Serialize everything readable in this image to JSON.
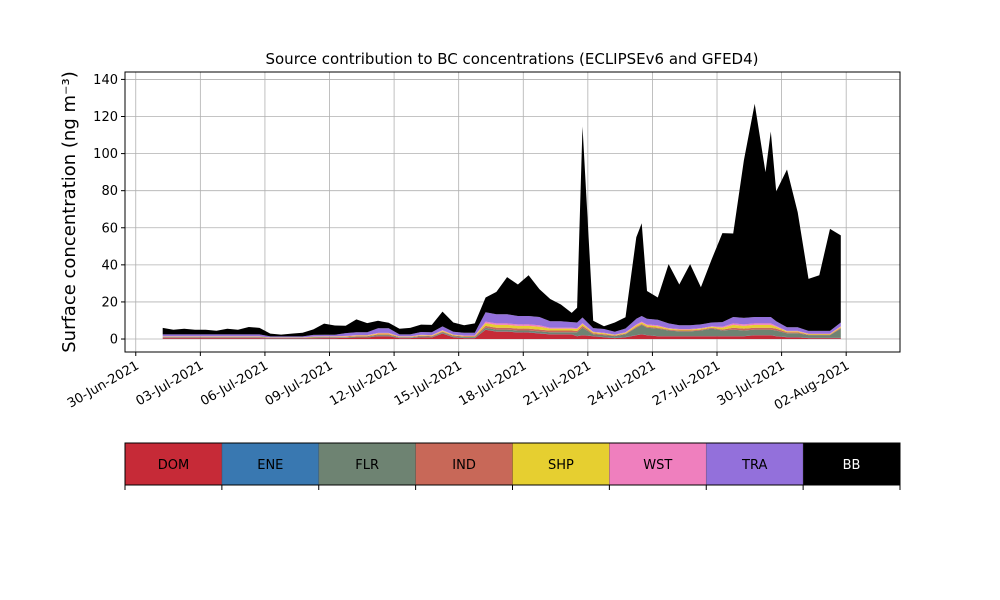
{
  "chart_data": {
    "type": "area",
    "title": "Source contribution to BC concentrations (ECLIPSEv6 and GFED4)",
    "ylabel": "Surface concentration (ng m⁻³)",
    "xlabel": "",
    "ylim": [
      -7,
      144
    ],
    "xlim": [
      "2021-06-29T12:00",
      "2021-08-04T12:00"
    ],
    "y_ticks": [
      0,
      20,
      40,
      60,
      80,
      100,
      120,
      140
    ],
    "x_ticks": [
      "2021-06-30",
      "2021-07-03",
      "2021-07-06",
      "2021-07-09",
      "2021-07-12",
      "2021-07-15",
      "2021-07-18",
      "2021-07-21",
      "2021-07-24",
      "2021-07-27",
      "2021-07-30",
      "2021-08-02"
    ],
    "x_tick_labels": [
      "30-Jun-2021",
      "03-Jul-2021",
      "06-Jul-2021",
      "09-Jul-2021",
      "12-Jul-2021",
      "15-Jul-2021",
      "18-Jul-2021",
      "21-Jul-2021",
      "24-Jul-2021",
      "27-Jul-2021",
      "30-Jul-2021",
      "02-Aug-2021"
    ],
    "grid": true,
    "stacked": true,
    "times": [
      "2021-07-01T06:00",
      "2021-07-01T18:00",
      "2021-07-02T06:00",
      "2021-07-02T18:00",
      "2021-07-03T06:00",
      "2021-07-03T18:00",
      "2021-07-04T06:00",
      "2021-07-04T18:00",
      "2021-07-05T06:00",
      "2021-07-05T18:00",
      "2021-07-06T06:00",
      "2021-07-06T18:00",
      "2021-07-07T06:00",
      "2021-07-07T18:00",
      "2021-07-08T06:00",
      "2021-07-08T18:00",
      "2021-07-09T06:00",
      "2021-07-09T18:00",
      "2021-07-10T06:00",
      "2021-07-10T18:00",
      "2021-07-11T06:00",
      "2021-07-11T18:00",
      "2021-07-12T06:00",
      "2021-07-12T18:00",
      "2021-07-13T06:00",
      "2021-07-13T18:00",
      "2021-07-14T06:00",
      "2021-07-14T18:00",
      "2021-07-15T06:00",
      "2021-07-15T18:00",
      "2021-07-16T06:00",
      "2021-07-16T18:00",
      "2021-07-17T06:00",
      "2021-07-17T18:00",
      "2021-07-18T06:00",
      "2021-07-18T18:00",
      "2021-07-19T06:00",
      "2021-07-19T18:00",
      "2021-07-20T06:00",
      "2021-07-20T12:00",
      "2021-07-20T18:00",
      "2021-07-21T06:00",
      "2021-07-21T18:00",
      "2021-07-22T06:00",
      "2021-07-22T18:00",
      "2021-07-23T06:00",
      "2021-07-23T12:00",
      "2021-07-23T18:00",
      "2021-07-24T06:00",
      "2021-07-24T18:00",
      "2021-07-25T06:00",
      "2021-07-25T18:00",
      "2021-07-26T06:00",
      "2021-07-26T18:00",
      "2021-07-27T06:00",
      "2021-07-27T18:00",
      "2021-07-28T06:00",
      "2021-07-28T18:00",
      "2021-07-29T06:00",
      "2021-07-29T12:00",
      "2021-07-29T18:00",
      "2021-07-30T06:00",
      "2021-07-30T18:00",
      "2021-07-31T06:00",
      "2021-07-31T18:00",
      "2021-08-01T06:00",
      "2021-08-01T18:00"
    ],
    "series": [
      {
        "name": "DOM",
        "color": "#c62a37",
        "values": [
          0.5,
          0.5,
          0.5,
          0.5,
          0.5,
          0.5,
          0.5,
          0.5,
          0.5,
          0.5,
          0.3,
          0.3,
          0.3,
          0.3,
          0.4,
          0.5,
          0.5,
          0.6,
          0.8,
          0.8,
          1.5,
          1.5,
          0.5,
          0.5,
          1.0,
          0.8,
          3.0,
          1.0,
          0.5,
          0.5,
          5.0,
          4.0,
          4.0,
          3.5,
          3.5,
          3.0,
          2.5,
          2.5,
          2.5,
          1.5,
          2.0,
          1.5,
          1.0,
          0.5,
          1.0,
          2.0,
          2.5,
          2.0,
          1.5,
          1.5,
          1.5,
          1.5,
          1.5,
          1.5,
          1.5,
          1.5,
          1.5,
          2.0,
          2.0,
          2.0,
          1.5,
          1.0,
          1.0,
          0.5,
          0.5,
          0.5,
          0.5
        ]
      },
      {
        "name": "ENE",
        "color": "#3978b1",
        "values": [
          0.1,
          0.1,
          0.1,
          0.1,
          0.1,
          0.1,
          0.1,
          0.1,
          0.1,
          0.1,
          0.1,
          0.1,
          0.1,
          0.1,
          0.1,
          0.1,
          0.1,
          0.1,
          0.1,
          0.1,
          0.1,
          0.1,
          0.1,
          0.1,
          0.1,
          0.1,
          0.1,
          0.1,
          0.1,
          0.1,
          0.1,
          0.1,
          0.1,
          0.1,
          0.1,
          0.1,
          0.1,
          0.1,
          0.1,
          0.1,
          0.1,
          0.1,
          0.1,
          0.1,
          0.1,
          0.1,
          0.1,
          0.1,
          0.1,
          0.1,
          0.1,
          0.1,
          0.1,
          0.1,
          0.1,
          0.1,
          0.1,
          0.1,
          0.1,
          0.1,
          0.1,
          0.1,
          0.1,
          0.1,
          0.1,
          0.1,
          0.1
        ]
      },
      {
        "name": "FLR",
        "color": "#6e8372",
        "values": [
          0.3,
          0.3,
          0.3,
          0.3,
          0.3,
          0.3,
          0.3,
          0.3,
          0.3,
          0.3,
          0.2,
          0.2,
          0.2,
          0.2,
          0.3,
          0.3,
          0.3,
          0.3,
          0.4,
          0.4,
          0.5,
          0.5,
          0.3,
          0.3,
          0.4,
          0.4,
          0.5,
          0.5,
          0.5,
          0.5,
          1.0,
          1.0,
          1.0,
          1.0,
          1.0,
          1.0,
          1.0,
          1.0,
          1.0,
          2.0,
          4.0,
          1.0,
          1.0,
          1.0,
          1.5,
          4.0,
          5.0,
          4.0,
          4.0,
          3.0,
          2.5,
          2.5,
          3.0,
          4.0,
          3.0,
          3.5,
          3.0,
          3.0,
          3.0,
          3.0,
          3.0,
          2.0,
          2.0,
          1.5,
          1.5,
          1.5,
          5.0
        ]
      },
      {
        "name": "IND",
        "color": "#c86858",
        "values": [
          0.2,
          0.2,
          0.2,
          0.2,
          0.2,
          0.2,
          0.2,
          0.2,
          0.2,
          0.2,
          0.1,
          0.1,
          0.1,
          0.1,
          0.2,
          0.2,
          0.2,
          0.2,
          0.3,
          0.3,
          0.4,
          0.4,
          0.2,
          0.2,
          0.3,
          0.3,
          0.4,
          0.3,
          0.3,
          0.3,
          1.0,
          1.0,
          1.0,
          1.0,
          1.0,
          1.0,
          1.0,
          1.0,
          1.0,
          0.8,
          1.0,
          0.5,
          0.5,
          0.3,
          0.3,
          0.5,
          0.5,
          0.5,
          0.5,
          0.5,
          0.5,
          0.5,
          0.5,
          0.5,
          0.5,
          1.0,
          1.0,
          1.0,
          1.0,
          1.0,
          1.0,
          0.5,
          0.5,
          0.3,
          0.3,
          0.3,
          0.5
        ]
      },
      {
        "name": "SHP",
        "color": "#e6cf30",
        "values": [
          0.2,
          0.2,
          0.2,
          0.2,
          0.2,
          0.2,
          0.2,
          0.2,
          0.2,
          0.2,
          0.1,
          0.1,
          0.1,
          0.1,
          0.2,
          0.2,
          0.2,
          0.3,
          0.3,
          0.3,
          0.5,
          0.5,
          0.2,
          0.2,
          0.3,
          0.3,
          0.5,
          0.3,
          0.3,
          0.3,
          1.5,
          1.5,
          1.5,
          1.5,
          1.5,
          1.5,
          1.0,
          1.0,
          1.0,
          1.0,
          1.0,
          0.5,
          0.5,
          0.3,
          0.5,
          0.8,
          0.8,
          0.8,
          0.8,
          0.5,
          0.5,
          0.5,
          0.5,
          0.5,
          1.0,
          1.5,
          1.5,
          1.5,
          1.5,
          1.5,
          1.0,
          0.5,
          0.5,
          0.3,
          0.3,
          0.3,
          0.5
        ]
      },
      {
        "name": "WST",
        "color": "#ef7fbe",
        "values": [
          0.2,
          0.2,
          0.2,
          0.2,
          0.2,
          0.2,
          0.2,
          0.2,
          0.2,
          0.2,
          0.1,
          0.1,
          0.1,
          0.1,
          0.2,
          0.2,
          0.2,
          0.2,
          0.2,
          0.2,
          0.3,
          0.3,
          0.2,
          0.2,
          0.2,
          0.2,
          0.3,
          0.2,
          0.2,
          0.2,
          0.8,
          0.8,
          0.8,
          0.8,
          0.8,
          0.8,
          0.5,
          0.5,
          0.5,
          0.5,
          0.5,
          0.3,
          0.3,
          0.2,
          0.3,
          0.5,
          0.5,
          0.5,
          0.5,
          0.3,
          0.3,
          0.3,
          0.3,
          0.3,
          0.5,
          0.8,
          0.8,
          0.8,
          0.8,
          0.8,
          0.5,
          0.3,
          0.3,
          0.2,
          0.2,
          0.2,
          0.3
        ]
      },
      {
        "name": "TRA",
        "color": "#9370db",
        "values": [
          1.0,
          1.0,
          1.0,
          1.0,
          1.0,
          1.0,
          1.0,
          1.0,
          1.0,
          1.0,
          0.5,
          0.5,
          0.5,
          0.5,
          0.8,
          0.8,
          0.8,
          1.5,
          1.5,
          1.5,
          2.5,
          2.5,
          1.0,
          1.0,
          1.5,
          1.5,
          2.0,
          1.5,
          1.5,
          1.5,
          5.0,
          5.0,
          5.0,
          4.5,
          4.5,
          4.5,
          3.5,
          3.5,
          3.0,
          3.0,
          3.0,
          2.0,
          2.0,
          1.5,
          2.0,
          3.0,
          3.0,
          3.0,
          3.0,
          2.5,
          2.0,
          2.0,
          2.0,
          2.0,
          2.5,
          3.5,
          3.5,
          3.5,
          3.5,
          3.5,
          2.5,
          2.0,
          2.0,
          1.5,
          1.5,
          1.5,
          2.0
        ]
      },
      {
        "name": "BB",
        "color": "#000000",
        "values": [
          3.5,
          2.5,
          3.0,
          2.5,
          2.5,
          2.0,
          3.0,
          2.5,
          4.0,
          3.5,
          1.5,
          1.0,
          1.5,
          2.0,
          3.0,
          6.0,
          5.0,
          4.0,
          7.0,
          5.0,
          4.0,
          3.0,
          3.0,
          3.5,
          4.0,
          4.0,
          8.0,
          5.0,
          4.0,
          5.0,
          8.0,
          12.0,
          20.0,
          17.0,
          22.0,
          15.0,
          12.0,
          9.0,
          5.0,
          8.0,
          103.0,
          4.0,
          1.5,
          5.0,
          6.0,
          44.0,
          50.0,
          15.0,
          12.0,
          32.0,
          22.0,
          33.0,
          20.0,
          34.0,
          48.0,
          45.0,
          85.0,
          115.0,
          78.0,
          100.0,
          70.0,
          85.0,
          62.0,
          28.0,
          30.0,
          55.0,
          47.0
        ]
      }
    ],
    "legend": [
      {
        "label": "DOM",
        "color": "#c62a37",
        "text_color": "#000000"
      },
      {
        "label": "ENE",
        "color": "#3978b1",
        "text_color": "#000000"
      },
      {
        "label": "FLR",
        "color": "#6e8372",
        "text_color": "#000000"
      },
      {
        "label": "IND",
        "color": "#c86858",
        "text_color": "#000000"
      },
      {
        "label": "SHP",
        "color": "#e6cf30",
        "text_color": "#000000"
      },
      {
        "label": "WST",
        "color": "#ef7fbe",
        "text_color": "#000000"
      },
      {
        "label": "TRA",
        "color": "#9370db",
        "text_color": "#000000"
      },
      {
        "label": "BB",
        "color": "#000000",
        "text_color": "#ffffff"
      }
    ]
  }
}
